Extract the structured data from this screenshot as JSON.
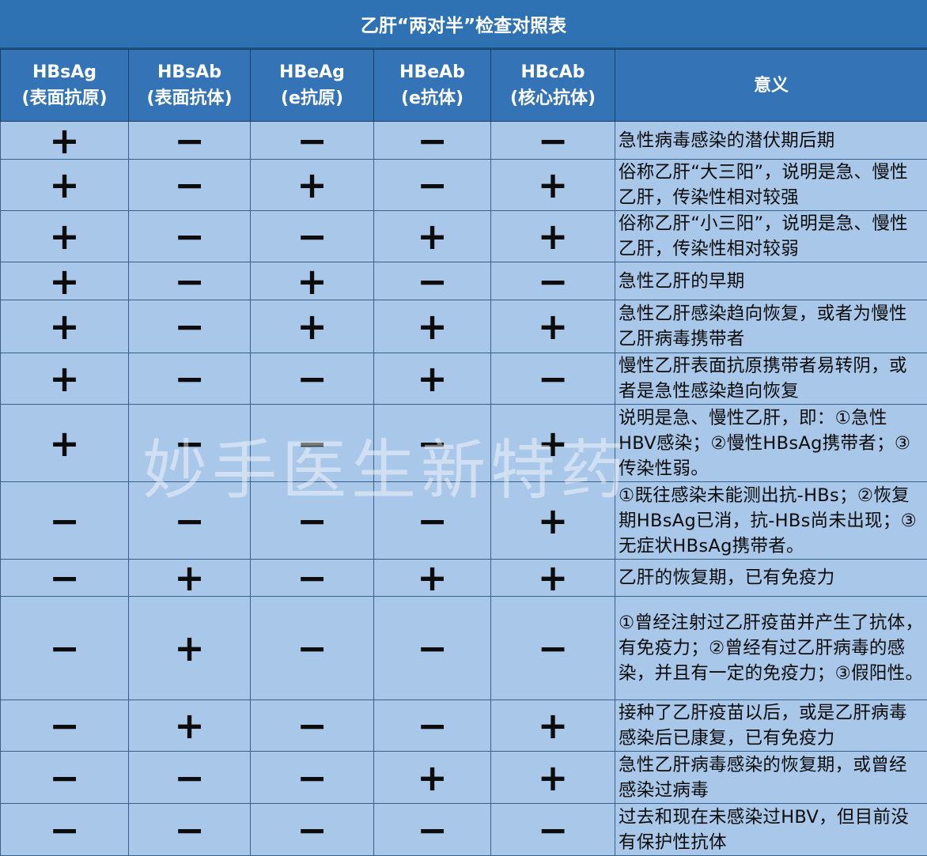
{
  "title": "乙肝“两对半”检查对照表",
  "columns": [
    {
      "code": "HBsAg",
      "desc": "(表面抗原)"
    },
    {
      "code": "HBsAb",
      "desc": "(表面抗体)"
    },
    {
      "code": "HBeAg",
      "desc": "(e抗原)"
    },
    {
      "code": "HBeAb",
      "desc": "(e抗体)"
    },
    {
      "code": "HBcAb",
      "desc": "(核心抗体)"
    }
  ],
  "meaning_header": "意义",
  "rows": [
    {
      "signs": [
        "+",
        "−",
        "−",
        "−",
        "−"
      ],
      "meaning": "急性病毒感染的潜伏期后期"
    },
    {
      "signs": [
        "+",
        "−",
        "+",
        "−",
        "+"
      ],
      "meaning": "俗称乙肝“大三阳”，说明是急、慢性乙肝，传染性相对较强"
    },
    {
      "signs": [
        "+",
        "−",
        "−",
        "+",
        "+"
      ],
      "meaning": "俗称乙肝“小三阳”，说明是急、慢性乙肝，传染性相对较弱"
    },
    {
      "signs": [
        "+",
        "−",
        "+",
        "−",
        "−"
      ],
      "meaning": "急性乙肝的早期"
    },
    {
      "signs": [
        "+",
        "−",
        "+",
        "+",
        "+"
      ],
      "meaning": "急性乙肝感染趋向恢复，或者为慢性乙肝病毒携带者"
    },
    {
      "signs": [
        "+",
        "−",
        "−",
        "+",
        "−"
      ],
      "meaning": "慢性乙肝表面抗原携带者易转阴，或者是急性感染趋向恢复"
    },
    {
      "signs": [
        "+",
        "−",
        "−",
        "−",
        "+"
      ],
      "meaning": "说明是急、慢性乙肝，即：①急性HBV感染；②慢性HBsAg携带者；③传染性弱。"
    },
    {
      "signs": [
        "−",
        "−",
        "−",
        "−",
        "+"
      ],
      "meaning": "①既往感染未能测出抗-HBs；②恢复期HBsAg已消，抗-HBs尚未出现；③无症状HBsAg携带者。"
    },
    {
      "signs": [
        "−",
        "+",
        "−",
        "+",
        "+"
      ],
      "meaning": "乙肝的恢复期，已有免疫力"
    },
    {
      "signs": [
        "−",
        "+",
        "−",
        "−",
        "−"
      ],
      "meaning": "①曾经注射过乙肝疫苗并产生了抗体，有免疫力；②曾经有过乙肝病毒的感染，并且有一定的免疫力；③假阳性。"
    },
    {
      "signs": [
        "−",
        "+",
        "−",
        "−",
        "+"
      ],
      "meaning": "接种了乙肝疫苗以后，或是乙肝病毒感染后已康复，已有免疫力"
    },
    {
      "signs": [
        "−",
        "−",
        "−",
        "+",
        "+"
      ],
      "meaning": "急性乙肝病毒感染的恢复期，或曾经感染过病毒"
    },
    {
      "signs": [
        "−",
        "−",
        "−",
        "−",
        "−"
      ],
      "meaning": "过去和现在未感染过HBV，但目前没有保护性抗体"
    }
  ],
  "watermark": "妙手医生新特药",
  "colors": {
    "header_bg": "#3474b6",
    "cell_bg": "#a9c7e8"
  }
}
